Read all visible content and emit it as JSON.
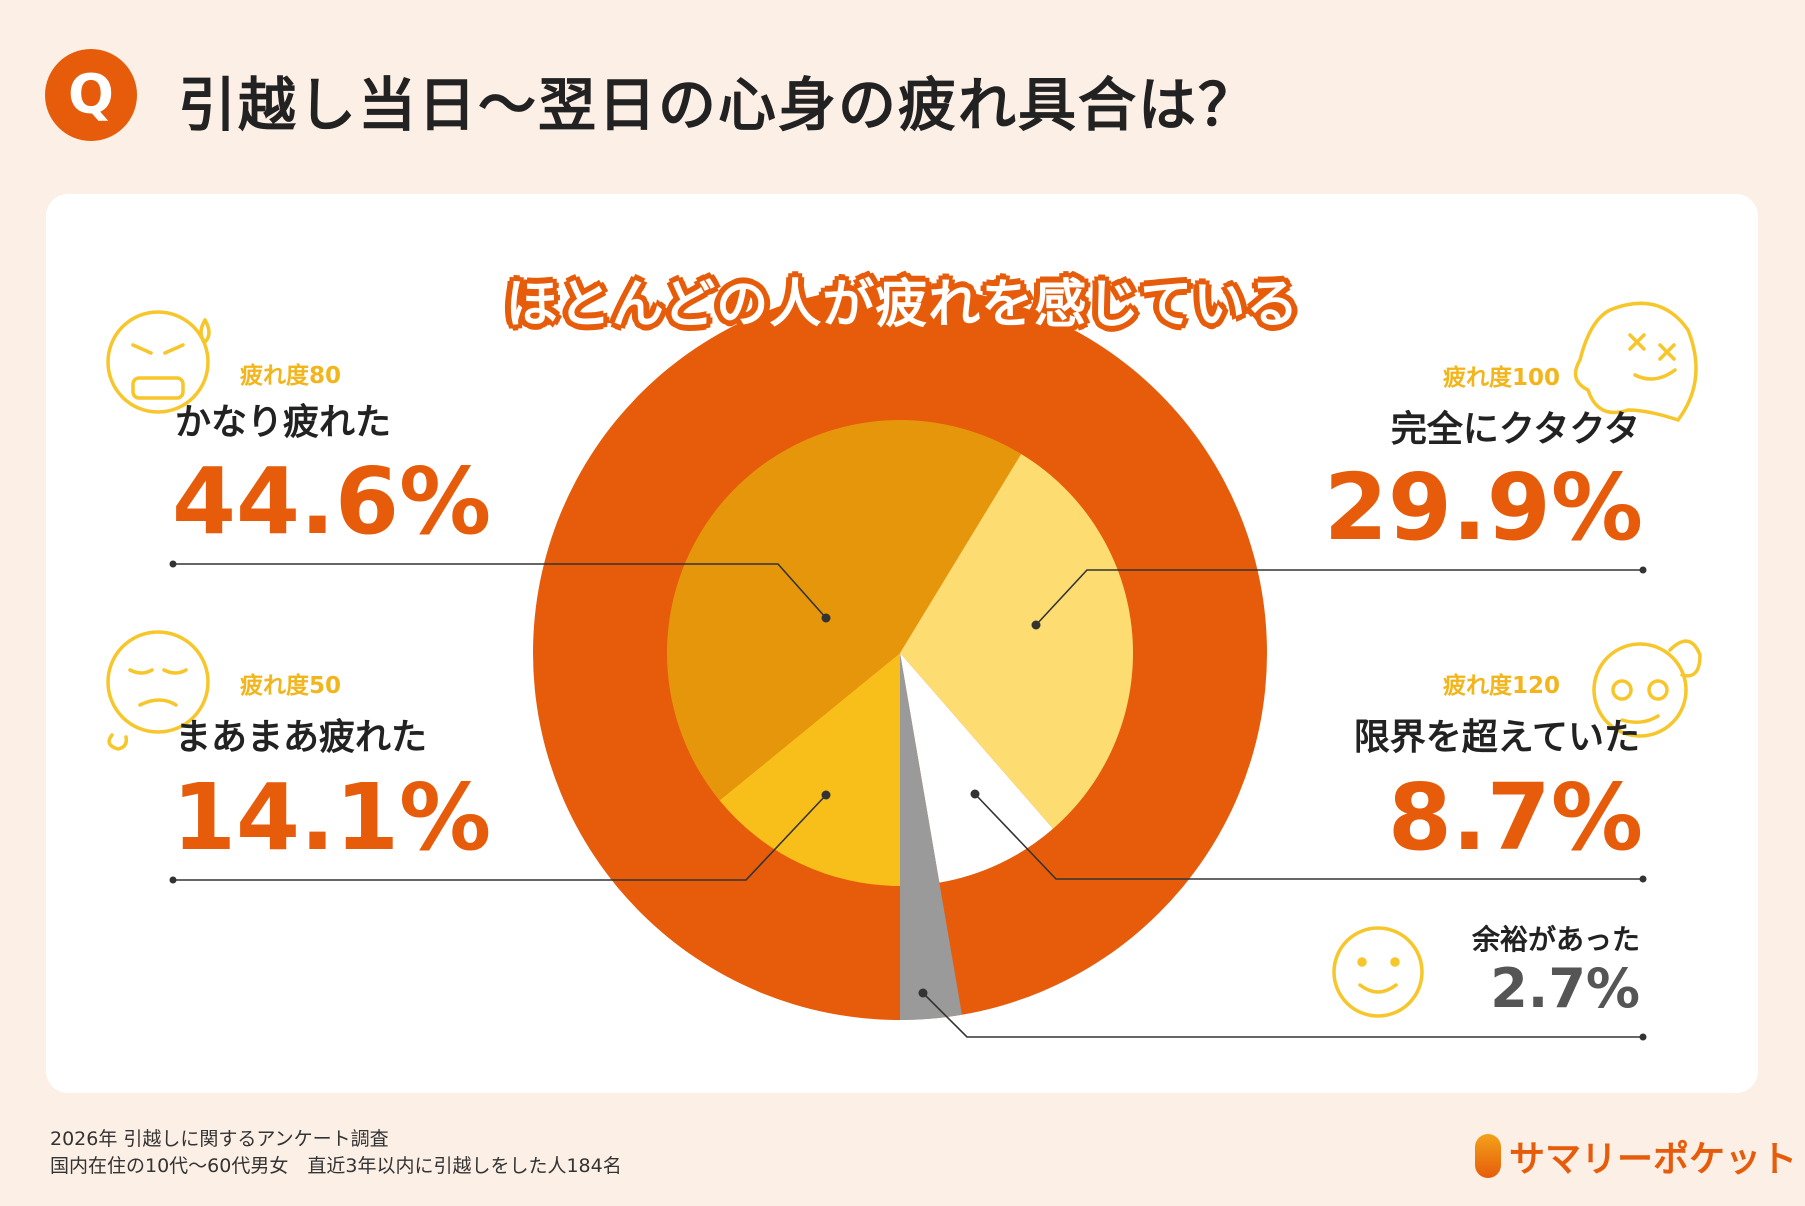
{
  "header": {
    "badge": "Q",
    "title": "引越し当日〜翌日の心身の疲れ具合は？"
  },
  "banner": "ほとんどの人が疲れを感じている",
  "labels": [
    {
      "level": "疲れ度80",
      "category": "かなり疲れた",
      "percent": "44.6%"
    },
    {
      "level": "疲れ度100",
      "category": "完全にクタクタ",
      "percent": "29.9%"
    },
    {
      "level": "疲れ度50",
      "category": "まあまあ疲れた",
      "percent": "14.1%"
    },
    {
      "level": "疲れ度120",
      "category": "限界を超えていた",
      "percent": "8.7%"
    },
    {
      "level": "",
      "category": "余裕があった",
      "percent": "2.7%"
    }
  ],
  "chart_data": {
    "type": "pie",
    "title": "",
    "slices": [
      {
        "name": "まあまあ疲れた",
        "value": 14.1,
        "color": "#f8bf1a"
      },
      {
        "name": "かなり疲れた",
        "value": 44.6,
        "color": "#e6960a"
      },
      {
        "name": "完全にクタクタ",
        "value": 29.9,
        "color": "#fddc72"
      },
      {
        "name": "限界を超えていた",
        "value": 8.7,
        "color": "#ffffff"
      },
      {
        "name": "余裕があった",
        "value": 2.7,
        "color": "#9a9a9a"
      }
    ],
    "outer_ring": {
      "value": 97.3,
      "color": "#e65c0a"
    }
  },
  "footer": {
    "line1": "2026年 引越しに関するアンケート調査",
    "line2": "国内在住の10代〜60代男女　直近3年以内に引越しをした人184名",
    "logo": "サマリーポケット"
  },
  "colors": {
    "accent": "#e65c0a",
    "background": "#fcefe6",
    "face": "#f6c62a"
  }
}
